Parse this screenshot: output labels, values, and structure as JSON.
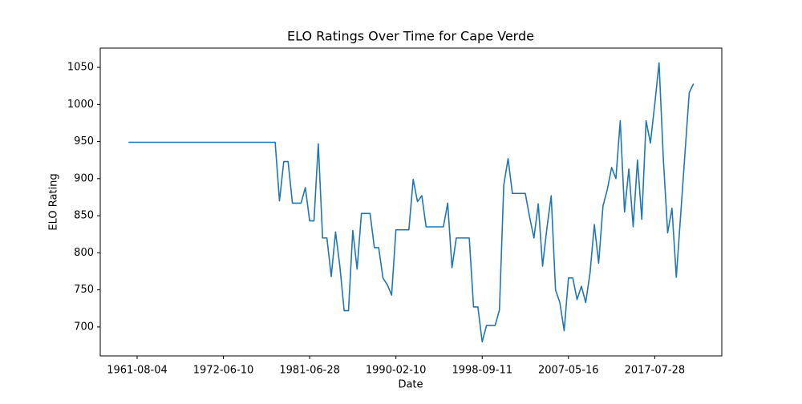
{
  "chart_data": {
    "type": "line",
    "title": "ELO Ratings Over Time for Cape Verde",
    "xlabel": "Date",
    "ylabel": "ELO Rating",
    "categories": [
      null,
      null,
      "1961-08-04",
      null,
      null,
      null,
      null,
      null,
      null,
      null,
      null,
      null,
      null,
      null,
      null,
      null,
      null,
      null,
      null,
      null,
      null,
      null,
      "1972-06-10",
      null,
      null,
      null,
      null,
      null,
      null,
      null,
      null,
      null,
      null,
      null,
      null,
      null,
      null,
      null,
      null,
      null,
      null,
      null,
      "1981-06-28",
      null,
      null,
      null,
      null,
      null,
      null,
      null,
      null,
      null,
      null,
      null,
      null,
      null,
      null,
      null,
      null,
      null,
      null,
      null,
      "1990-02-10",
      null,
      null,
      null,
      null,
      null,
      null,
      null,
      null,
      null,
      null,
      null,
      null,
      null,
      null,
      null,
      null,
      null,
      null,
      null,
      "1998-09-11",
      null,
      null,
      null,
      null,
      null,
      null,
      null,
      null,
      null,
      null,
      null,
      null,
      null,
      null,
      null,
      null,
      null,
      null,
      null,
      "2007-05-16",
      null,
      null,
      null,
      null,
      null,
      null,
      null,
      null,
      null,
      null,
      null,
      null,
      null,
      null,
      null,
      null,
      null,
      null,
      null,
      "2017-07-28",
      null,
      null,
      null,
      null,
      null,
      null,
      null,
      null,
      null
    ],
    "series": [
      {
        "name": "ELO Rating",
        "color": "#1f77b4",
        "values": [
          949,
          949,
          949,
          949,
          949,
          949,
          949,
          949,
          949,
          949,
          949,
          949,
          949,
          949,
          949,
          949,
          949,
          949,
          949,
          949,
          949,
          949,
          949,
          949,
          949,
          949,
          949,
          949,
          949,
          949,
          949,
          949,
          949,
          949,
          949,
          870,
          923,
          923,
          867,
          867,
          867,
          888,
          843,
          843,
          947,
          820,
          820,
          768,
          828,
          782,
          722,
          722,
          830,
          778,
          853,
          853,
          853,
          807,
          807,
          766,
          757,
          743,
          831,
          831,
          831,
          831,
          899,
          869,
          877,
          835,
          835,
          835,
          835,
          835,
          867,
          780,
          820,
          820,
          820,
          820,
          727,
          727,
          680,
          702,
          702,
          702,
          723,
          891,
          927,
          880,
          880,
          880,
          880,
          848,
          820,
          866,
          782,
          833,
          877,
          750,
          733,
          695,
          766,
          766,
          737,
          755,
          733,
          773,
          838,
          786,
          863,
          885,
          915,
          900,
          978,
          855,
          913,
          835,
          925,
          845,
          978,
          948,
          1000,
          1056,
          926,
          827,
          860,
          767,
          850,
          933,
          1016,
          1028
        ]
      }
    ],
    "ylim": [
      661,
      1076
    ],
    "yticks": [
      700,
      750,
      800,
      850,
      900,
      950,
      1000,
      1050
    ],
    "grid": false
  }
}
